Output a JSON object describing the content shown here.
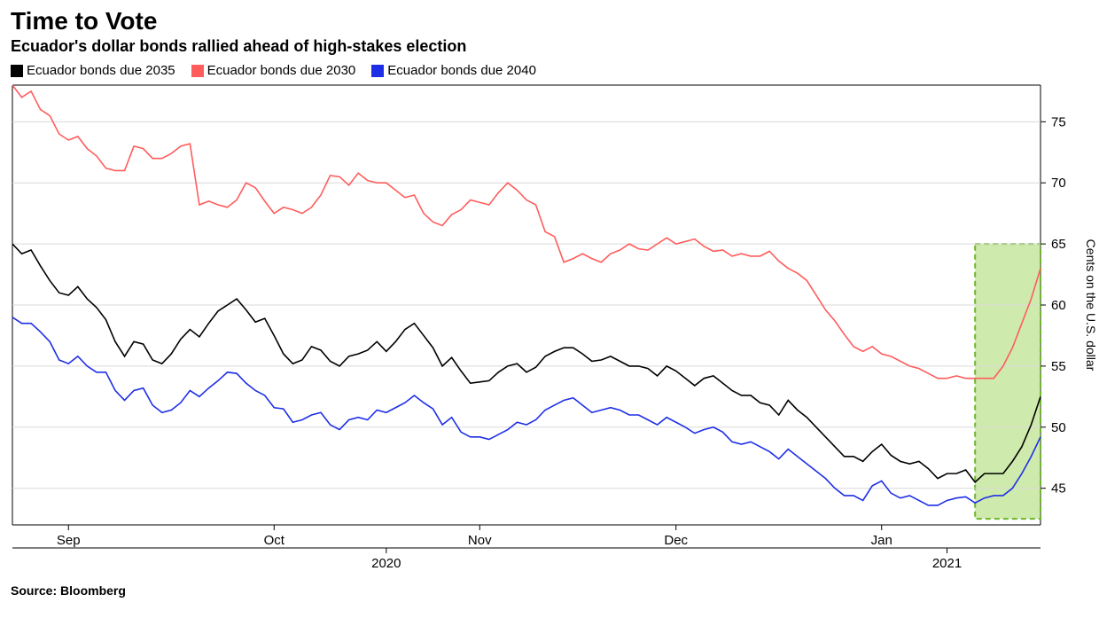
{
  "title": "Time to Vote",
  "subtitle": "Ecuador's dollar bonds rallied ahead of high-stakes election",
  "source": "Source: Bloomberg",
  "y_axis_label": "Cents on the U.S. dollar",
  "chart": {
    "type": "line",
    "background_color": "#ffffff",
    "grid_color": "#d9d9d9",
    "axis_color": "#000000",
    "text_color": "#000000",
    "highlight": {
      "fill": "#a8d86a",
      "fill_opacity": 0.55,
      "stroke": "#6eb82c",
      "stroke_dasharray": "6,4",
      "x_start": 103,
      "x_end": 110
    },
    "x": {
      "min": 0,
      "max": 110,
      "month_ticks": [
        {
          "pos": 6,
          "label": "Sep"
        },
        {
          "pos": 28,
          "label": "Oct"
        },
        {
          "pos": 50,
          "label": "Nov"
        },
        {
          "pos": 71,
          "label": "Dec"
        },
        {
          "pos": 93,
          "label": "Jan"
        }
      ],
      "year_ticks": [
        {
          "pos": 40,
          "label": "2020"
        },
        {
          "pos": 100,
          "label": "2021"
        }
      ]
    },
    "y": {
      "min": 42,
      "max": 78,
      "ticks": [
        45,
        50,
        55,
        60,
        65,
        70,
        75
      ]
    },
    "series": [
      {
        "name": "Ecuador bonds due 2035",
        "color": "#000000",
        "width": 1.6,
        "data": [
          65,
          64.2,
          64.5,
          63.2,
          62,
          61,
          60.8,
          61.5,
          60.5,
          59.8,
          58.8,
          57,
          55.8,
          57,
          56.8,
          55.5,
          55.2,
          56,
          57.2,
          58,
          57.4,
          58.5,
          59.5,
          60,
          60.5,
          59.6,
          58.6,
          58.9,
          57.5,
          56,
          55.2,
          55.5,
          56.6,
          56.3,
          55.4,
          55,
          55.8,
          56,
          56.3,
          57,
          56.2,
          57,
          58,
          58.5,
          57.5,
          56.5,
          55,
          55.7,
          54.6,
          53.6,
          53.7,
          53.8,
          54.5,
          55,
          55.2,
          54.5,
          54.9,
          55.8,
          56.2,
          56.5,
          56.5,
          56,
          55.4,
          55.5,
          55.8,
          55.4,
          55,
          55,
          54.8,
          54.2,
          55,
          54.6,
          54,
          53.4,
          54,
          54.2,
          53.6,
          53,
          52.6,
          52.6,
          52,
          51.8,
          51,
          52.2,
          51.4,
          50.8,
          50,
          49.2,
          48.4,
          47.6,
          47.6,
          47.2,
          48,
          48.6,
          47.7,
          47.2,
          47,
          47.2,
          46.6,
          45.8,
          46.2,
          46.2,
          46.5,
          45.5,
          46.2,
          46.2,
          46.2,
          47.2,
          48.4,
          50.2,
          52.5
        ]
      },
      {
        "name": "Ecuador bonds due 2030",
        "color": "#ff5c5c",
        "width": 1.6,
        "data": [
          78,
          77,
          77.5,
          76,
          75.5,
          74,
          73.5,
          73.8,
          72.8,
          72.2,
          71.2,
          71,
          71,
          73,
          72.8,
          72,
          72,
          72.4,
          73,
          73.2,
          68.2,
          68.5,
          68.2,
          68,
          68.6,
          70,
          69.6,
          68.5,
          67.5,
          68,
          67.8,
          67.5,
          68,
          69,
          70.6,
          70.5,
          69.8,
          70.8,
          70.2,
          70,
          70,
          69.4,
          68.8,
          69,
          67.5,
          66.8,
          66.5,
          67.4,
          67.8,
          68.6,
          68.4,
          68.2,
          69.2,
          70,
          69.4,
          68.6,
          68.2,
          66,
          65.6,
          63.5,
          63.8,
          64.2,
          63.8,
          63.5,
          64.2,
          64.5,
          65,
          64.6,
          64.5,
          65,
          65.5,
          65,
          65.2,
          65.4,
          64.8,
          64.4,
          64.5,
          64,
          64.2,
          64,
          64,
          64.4,
          63.6,
          63,
          62.6,
          62,
          60.8,
          59.6,
          58.7,
          57.6,
          56.6,
          56.2,
          56.6,
          56,
          55.8,
          55.4,
          55,
          54.8,
          54.4,
          54,
          54,
          54.2,
          54,
          54,
          54,
          54,
          55,
          56.5,
          58.5,
          60.5,
          63
        ]
      },
      {
        "name": "Ecuador bonds due 2040",
        "color": "#1e2ee6",
        "width": 1.6,
        "data": [
          59,
          58.5,
          58.5,
          57.8,
          57,
          55.5,
          55.2,
          55.8,
          55,
          54.5,
          54.5,
          53,
          52.2,
          53,
          53.2,
          51.8,
          51.2,
          51.4,
          52,
          53,
          52.5,
          53.2,
          53.8,
          54.5,
          54.4,
          53.6,
          53,
          52.6,
          51.6,
          51.5,
          50.4,
          50.6,
          51,
          51.2,
          50.2,
          49.8,
          50.6,
          50.8,
          50.6,
          51.4,
          51.2,
          51.6,
          52,
          52.6,
          52,
          51.5,
          50.2,
          50.8,
          49.6,
          49.2,
          49.2,
          49,
          49.4,
          49.8,
          50.4,
          50.2,
          50.6,
          51.4,
          51.8,
          52.2,
          52.4,
          51.8,
          51.2,
          51.4,
          51.6,
          51.4,
          51,
          51,
          50.6,
          50.2,
          50.8,
          50.4,
          50,
          49.5,
          49.8,
          50,
          49.6,
          48.8,
          48.6,
          48.8,
          48.4,
          48,
          47.4,
          48.2,
          47.6,
          47,
          46.4,
          45.8,
          45,
          44.4,
          44.4,
          44,
          45.2,
          45.6,
          44.6,
          44.2,
          44.4,
          44,
          43.6,
          43.6,
          44,
          44.2,
          44.3,
          43.8,
          44.2,
          44.4,
          44.4,
          45,
          46.2,
          47.6,
          49.2
        ]
      }
    ]
  }
}
